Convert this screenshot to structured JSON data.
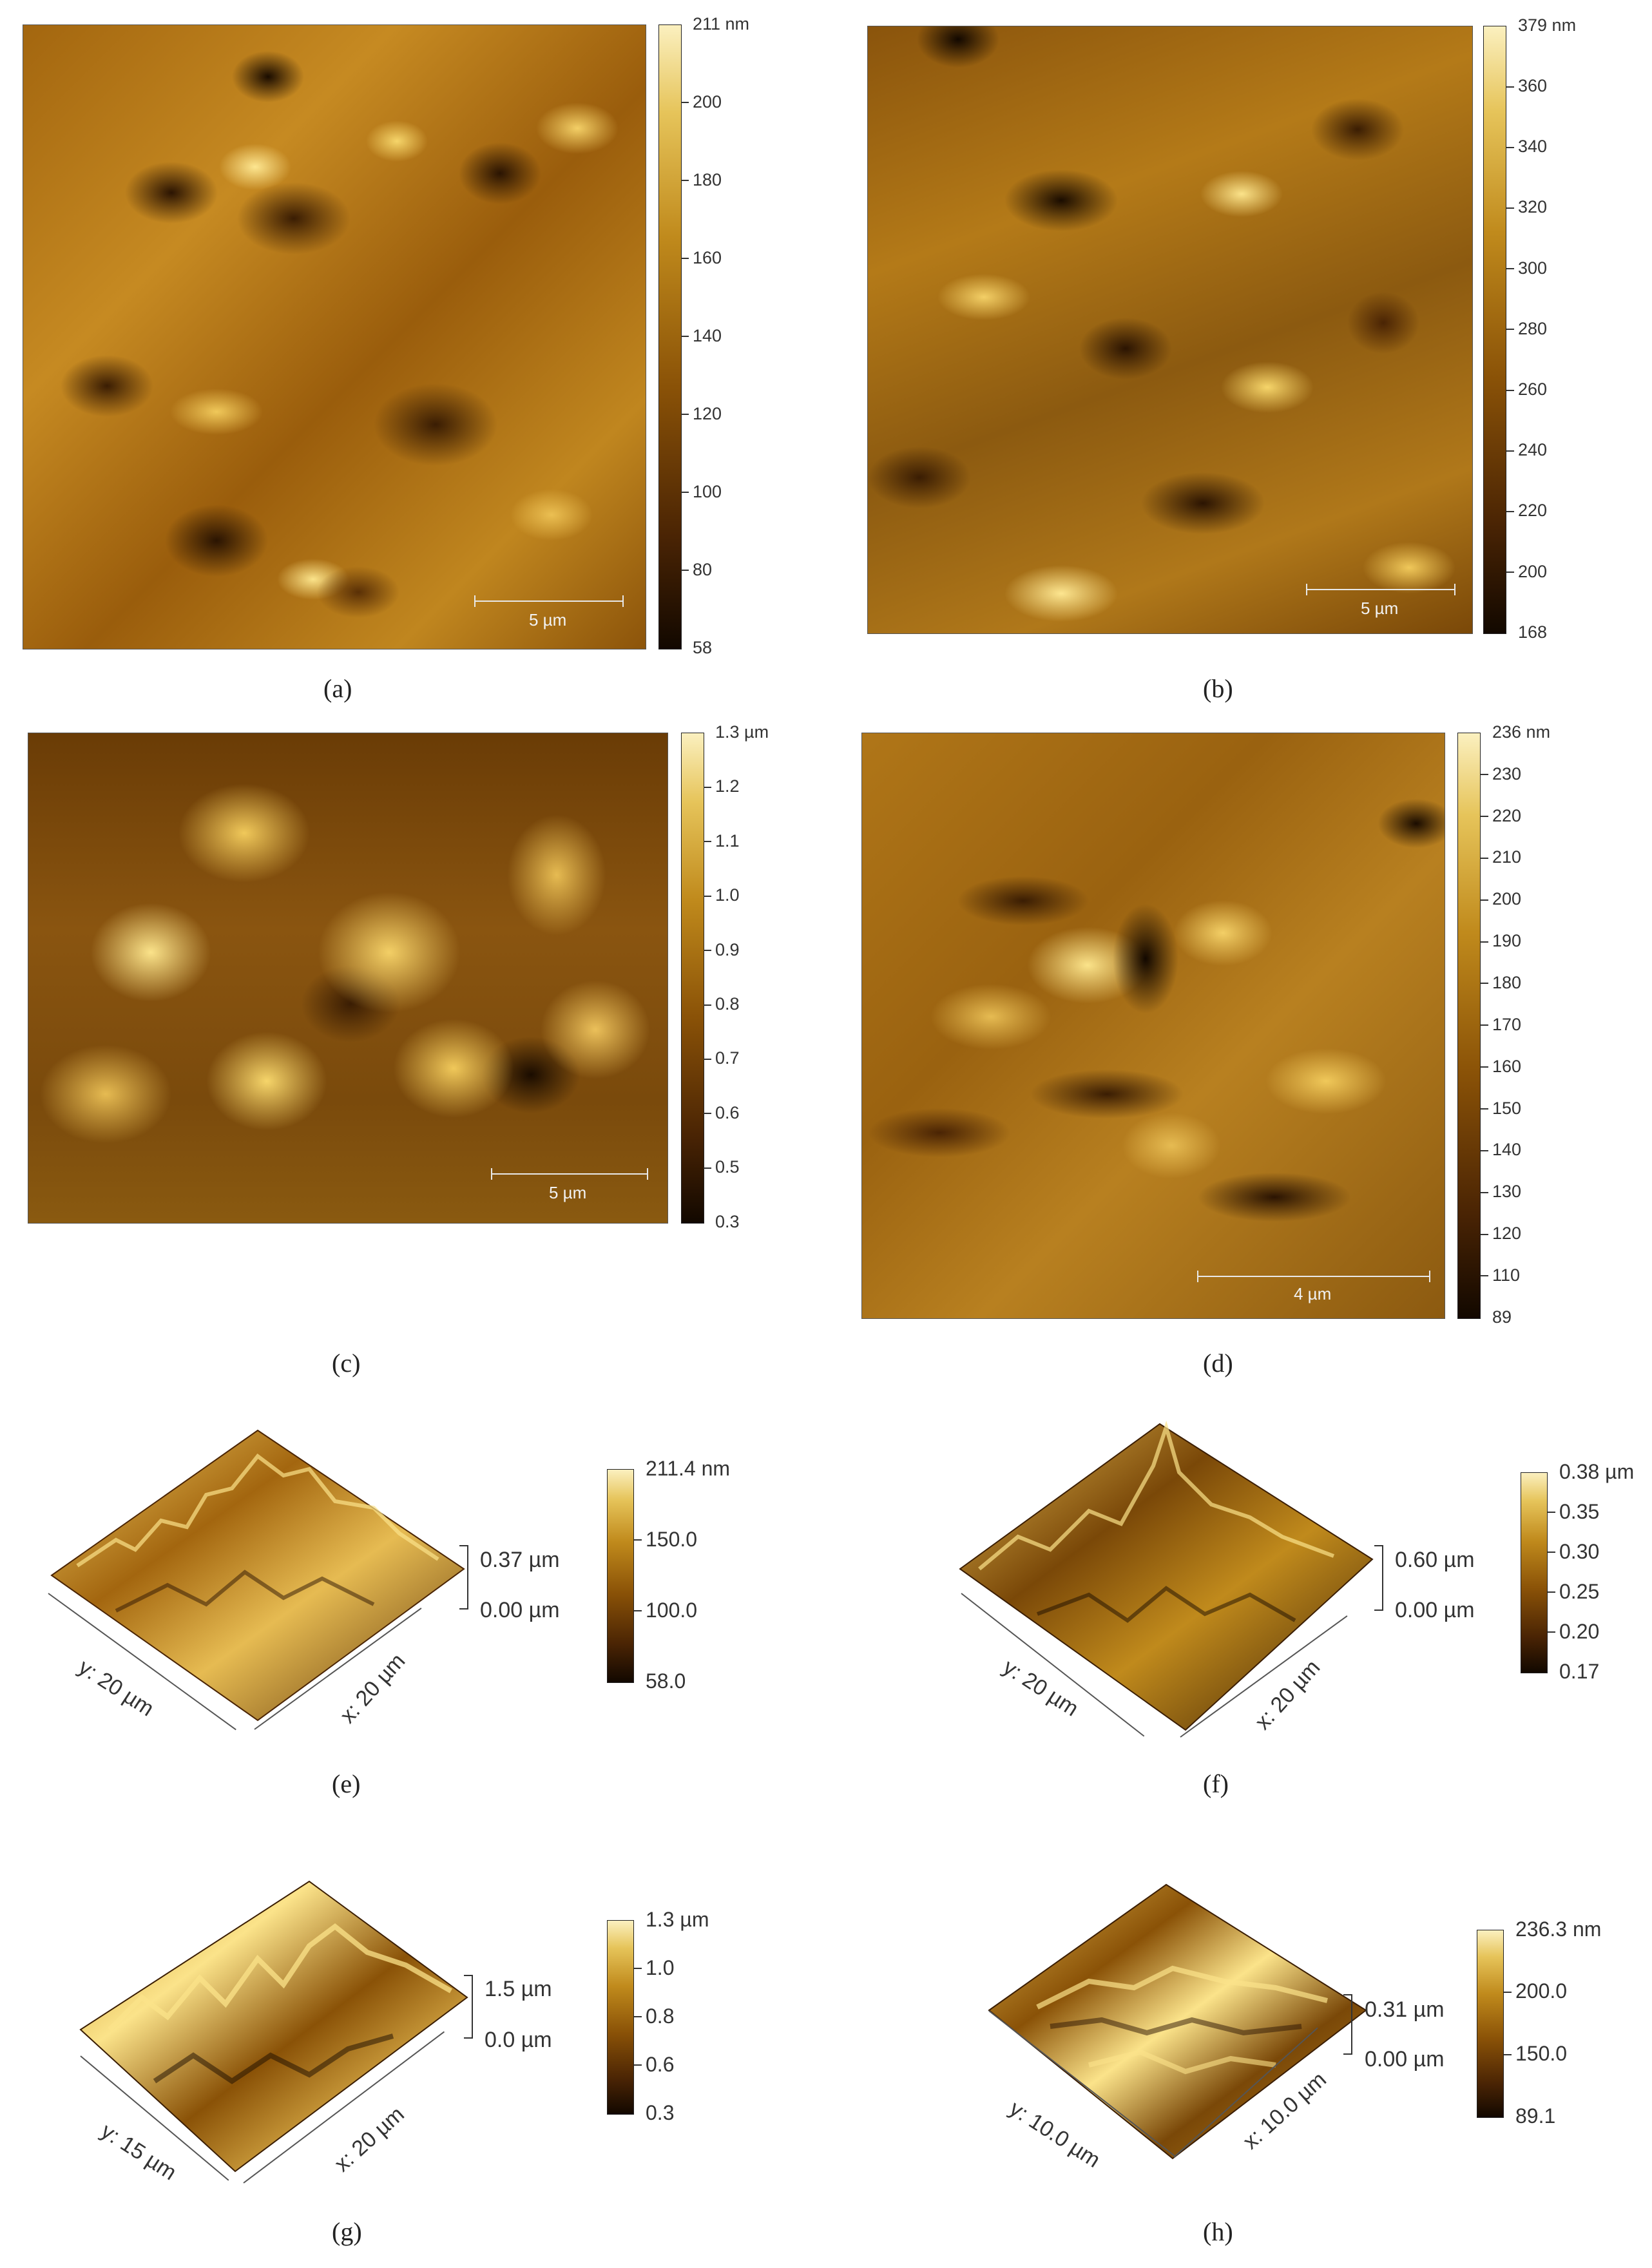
{
  "panels": {
    "a": {
      "caption": "(a)",
      "colorbar": [
        "211 nm",
        "200",
        "180",
        "160",
        "140",
        "120",
        "100",
        "80",
        "58"
      ],
      "scale": "5 µm"
    },
    "b": {
      "caption": "(b)",
      "colorbar": [
        "379 nm",
        "360",
        "340",
        "320",
        "300",
        "280",
        "260",
        "240",
        "220",
        "200",
        "168"
      ],
      "scale": "5 µm"
    },
    "c": {
      "caption": "(c)",
      "colorbar": [
        "1.3 µm",
        "1.2",
        "1.1",
        "1.0",
        "0.9",
        "0.8",
        "0.7",
        "0.6",
        "0.5",
        "0.3"
      ],
      "scale": "5 µm"
    },
    "d": {
      "caption": "(d)",
      "colorbar": [
        "236 nm",
        "230",
        "220",
        "210",
        "200",
        "190",
        "180",
        "170",
        "160",
        "150",
        "140",
        "130",
        "120",
        "110",
        "89"
      ],
      "scale": "4 µm"
    },
    "e": {
      "caption": "(e)",
      "colorbar": [
        "211.4 nm",
        "150.0",
        "100.0",
        "58.0"
      ],
      "z_top": "0.37 µm",
      "z_bottom": "0.00 µm",
      "y_axis": "y: 20 µm",
      "x_axis": "x: 20 µm"
    },
    "f": {
      "caption": "(f)",
      "colorbar": [
        "0.38 µm",
        "0.35",
        "0.30",
        "0.25",
        "0.20",
        "0.17"
      ],
      "z_top": "0.60 µm",
      "z_bottom": "0.00 µm",
      "y_axis": "y: 20 µm",
      "x_axis": "x: 20 µm"
    },
    "g": {
      "caption": "(g)",
      "colorbar": [
        "1.3 µm",
        "1.0",
        "0.8",
        "0.6",
        "0.3"
      ],
      "z_top": "1.5 µm",
      "z_bottom": "0.0 µm",
      "y_axis": "y: 15 µm",
      "x_axis": "x: 20 µm"
    },
    "h": {
      "caption": "(h)",
      "colorbar": [
        "236.3 nm",
        "200.0",
        "150.0",
        "89.1"
      ],
      "z_top": "0.31 µm",
      "z_bottom": "0.00 µm",
      "y_axis": "y: 10.0 µm",
      "x_axis": "x: 10.0 µm"
    }
  }
}
